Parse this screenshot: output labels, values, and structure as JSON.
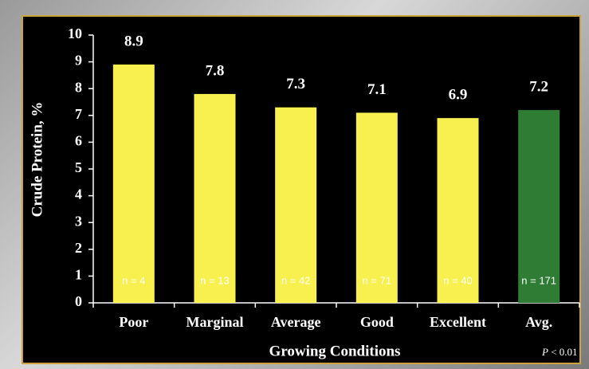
{
  "chart_data": {
    "type": "bar",
    "x_label": "Growing Conditions",
    "y_label": "Crude Protein, %",
    "categories": [
      "Poor",
      "Marginal",
      "Average",
      "Good",
      "Excellent",
      "Avg."
    ],
    "values": [
      8.9,
      7.8,
      7.3,
      7.1,
      6.9,
      7.2
    ],
    "colors": [
      "#f7f04e",
      "#f7f04e",
      "#f7f04e",
      "#f7f04e",
      "#f7f04e",
      "#2f7d34"
    ],
    "sample_sizes": [
      "n = 4",
      "n = 13",
      "n = 42",
      "n = 71",
      "n = 40",
      "n = 171"
    ],
    "ylim": [
      0,
      10
    ],
    "yticks": [
      0,
      1,
      2,
      3,
      4,
      5,
      6,
      7,
      8,
      9,
      10
    ],
    "note_symbol": "P",
    "note_text": "< 0.01"
  }
}
